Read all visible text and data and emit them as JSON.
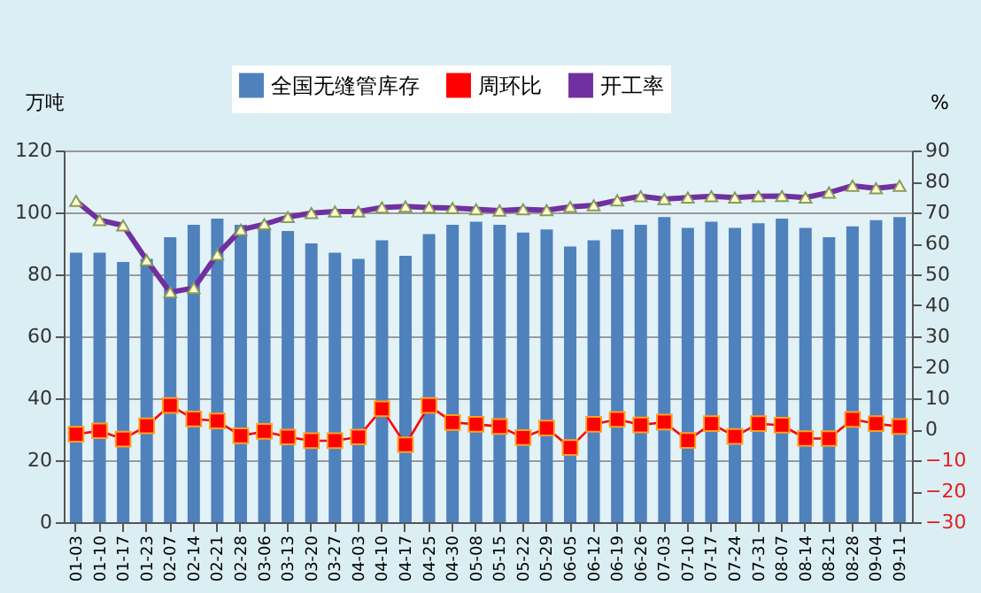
{
  "chart_data": {
    "type": "bar",
    "ylabel": "万吨",
    "y2label": "%",
    "categories": [
      "01-03",
      "01-10",
      "01-17",
      "01-23",
      "02-07",
      "02-14",
      "02-21",
      "02-28",
      "03-06",
      "03-13",
      "03-20",
      "03-27",
      "04-03",
      "04-10",
      "04-17",
      "04-25",
      "04-30",
      "05-08",
      "05-15",
      "05-22",
      "05-29",
      "06-05",
      "06-12",
      "06-19",
      "06-26",
      "07-03",
      "07-10",
      "07-17",
      "07-24",
      "07-31",
      "08-07",
      "08-14",
      "08-21",
      "08-28",
      "09-04",
      "09-11"
    ],
    "series": [
      {
        "name": "全国无缝管库存",
        "color": "#4f81bd",
        "values": [
          87,
          87,
          84,
          85,
          92,
          96,
          98,
          96,
          95,
          94,
          90,
          87,
          85,
          91,
          86,
          93,
          96,
          97,
          96,
          93.5,
          94.5,
          89,
          91,
          94.5,
          96,
          98.5,
          95,
          97,
          95,
          96.5,
          98,
          95,
          92,
          95.5,
          97.5,
          98.5
        ]
      },
      {
        "name": "周环比",
        "type": "line",
        "axis": "y2",
        "marker": "square",
        "color": "#ff0000",
        "values": [
          -1.6,
          -0.5,
          -3.2,
          1.1,
          7.7,
          3.3,
          2.7,
          -2.1,
          -0.7,
          -2.5,
          -3.7,
          -3.7,
          -2.5,
          6.6,
          -5,
          7.7,
          2.2,
          1.6,
          0.9,
          -2.7,
          0.4,
          -5.9,
          1.6,
          3.2,
          1.4,
          2.3,
          -3.6,
          1.8,
          -2.3,
          1.8,
          1.3,
          -3,
          -3,
          3.2,
          1.8,
          0.9
        ]
      },
      {
        "name": "开工率",
        "type": "line",
        "axis": "y2",
        "marker": "triangle",
        "color": "#7030a0",
        "values": [
          73.7,
          67.5,
          65.8,
          54.6,
          44.2,
          45.6,
          56.4,
          64.4,
          66.2,
          68.5,
          69.8,
          70.3,
          70.3,
          71.6,
          71.9,
          71.6,
          71.4,
          71,
          70.6,
          71,
          70.7,
          71.8,
          72.3,
          73.9,
          75.2,
          74.3,
          74.8,
          75.2,
          74.8,
          75.2,
          75.3,
          74.8,
          76.4,
          78.6,
          77.8,
          78.6
        ]
      }
    ],
    "ylim": [
      0,
      120
    ],
    "yticks": [
      0,
      20,
      40,
      60,
      80,
      100,
      120
    ],
    "y2lim": [
      -30,
      90
    ],
    "y2ticks": [
      -30,
      -20,
      -10,
      0,
      10,
      20,
      30,
      40,
      50,
      60,
      70,
      80,
      90
    ],
    "grid": "y",
    "legend": "top"
  }
}
